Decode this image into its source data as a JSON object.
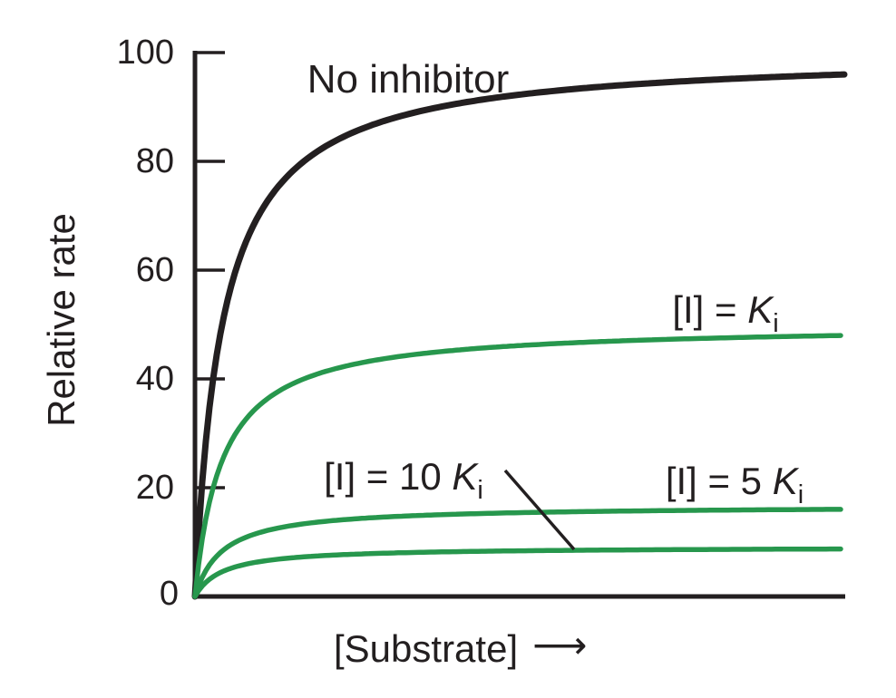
{
  "chart_data": {
    "type": "line",
    "title": "",
    "xlabel": "[Substrate]",
    "ylabel": "Relative rate",
    "x_axis_tick_labels": [],
    "y_axis_tick_labels": [
      "100",
      "80",
      "60",
      "40",
      "20",
      "0"
    ],
    "ylim": [
      0,
      100
    ],
    "grid": false,
    "legend_position": "inline-labels",
    "model": "michaelis-menten",
    "x_range_in_km_units": 23.8,
    "series": [
      {
        "name": "no-inhibitor",
        "label": "No inhibitor",
        "color": "#231f20",
        "vmax": 100,
        "km": 1,
        "plateau_shown": 96
      },
      {
        "name": "inhibitor-equals-ki",
        "label": "[I] = Ki",
        "color": "#27974d",
        "vmax": 50,
        "km": 1,
        "plateau_shown": 48
      },
      {
        "name": "inhibitor-equals-5ki",
        "label": "[I] = 5 Ki",
        "color": "#27974d",
        "vmax": 16.7,
        "km": 1,
        "plateau_shown": 16
      },
      {
        "name": "inhibitor-equals-10ki",
        "label": "[I] = 10 Ki",
        "color": "#27974d",
        "vmax": 9.1,
        "km": 1,
        "plateau_shown": 9
      }
    ],
    "annotations": [
      {
        "name": "leader-line",
        "from_label": "[I] = 10 Ki",
        "points_to": "lowest green curve"
      }
    ]
  },
  "labels": {
    "no_inhibitor": "No inhibitor",
    "ki": {
      "pre": "[I] = ",
      "sym": "K",
      "sub": "i"
    },
    "five_ki": {
      "pre": "[I] = 5 ",
      "sym": "K",
      "sub": "i"
    },
    "ten_ki": {
      "pre": "[I] = 10 ",
      "sym": "K",
      "sub": "i"
    },
    "ylabel": "Relative rate",
    "xlabel": "[Substrate]",
    "arrow": "⟶"
  },
  "axis": {
    "ticks": [
      "100",
      "80",
      "60",
      "40",
      "20",
      "0"
    ]
  },
  "colors": {
    "ink": "#231f20",
    "green": "#27974d",
    "background": "#ffffff"
  }
}
